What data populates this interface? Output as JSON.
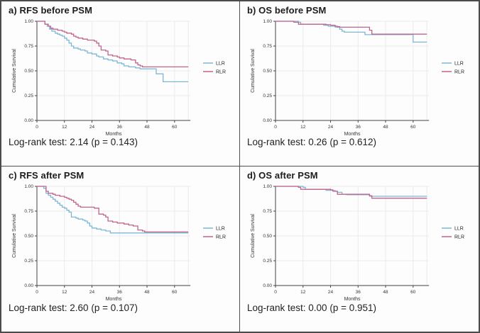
{
  "figure": {
    "background": "#fdfdfd",
    "outer_border_color": "#4b4b4b",
    "divider_color": "#4f4f4f"
  },
  "shared": {
    "colors": {
      "LLR": "#7eb6d6",
      "RLR": "#c2638b",
      "axis": "#444444",
      "grid": "#ebebeb",
      "tick_text": "#333333"
    },
    "axis": {
      "x_label": "Months",
      "y_label": "Cumulative Survival",
      "x_ticks": [
        0,
        12,
        24,
        36,
        48,
        60
      ],
      "y_ticks": [
        {
          "label": "1.00",
          "value": 1.0
        },
        {
          "label": "0.75",
          "value": 0.75
        },
        {
          "label": "0.50",
          "value": 0.5
        },
        {
          "label": "0.25",
          "value": 0.25
        },
        {
          "label": "0.00",
          "value": 0.0
        }
      ],
      "x_max": 66,
      "y_range": [
        0,
        1
      ]
    },
    "legend": [
      "LLR",
      "RLR"
    ]
  },
  "chart_data": [
    {
      "type": "line",
      "subtype": "step-km",
      "title": "a) RFS before PSM",
      "annotation": "Log-rank test: 2.14 (p = 0.143)",
      "xlabel": "Months",
      "ylabel": "Cumulative Survival",
      "xlim": [
        0,
        66
      ],
      "ylim": [
        0,
        1
      ],
      "legend_position": "right",
      "grid": true,
      "series": [
        {
          "name": "LLR",
          "points": [
            [
              0,
              1.0
            ],
            [
              3.5,
              0.97
            ],
            [
              4.5,
              0.95
            ],
            [
              5.5,
              0.92
            ],
            [
              6.5,
              0.9
            ],
            [
              8,
              0.88
            ],
            [
              9,
              0.87
            ],
            [
              10,
              0.86
            ],
            [
              11,
              0.85
            ],
            [
              12,
              0.83
            ],
            [
              13,
              0.81
            ],
            [
              14,
              0.78
            ],
            [
              15,
              0.75
            ],
            [
              16,
              0.73
            ],
            [
              18,
              0.72
            ],
            [
              19,
              0.71
            ],
            [
              21,
              0.7
            ],
            [
              22,
              0.68
            ],
            [
              24,
              0.67
            ],
            [
              26,
              0.65
            ],
            [
              27,
              0.64
            ],
            [
              29,
              0.62
            ],
            [
              31,
              0.61
            ],
            [
              33,
              0.6
            ],
            [
              35,
              0.58
            ],
            [
              37,
              0.57
            ],
            [
              38,
              0.55
            ],
            [
              40,
              0.54
            ],
            [
              43,
              0.53
            ],
            [
              45,
              0.52
            ],
            [
              52,
              0.47
            ],
            [
              55,
              0.39
            ],
            [
              66,
              0.39
            ]
          ]
        },
        {
          "name": "RLR",
          "points": [
            [
              0,
              1.0
            ],
            [
              3.5,
              0.97
            ],
            [
              5,
              0.95
            ],
            [
              6,
              0.93
            ],
            [
              7,
              0.92
            ],
            [
              9,
              0.91
            ],
            [
              11,
              0.9
            ],
            [
              12,
              0.89
            ],
            [
              13,
              0.88
            ],
            [
              15,
              0.87
            ],
            [
              16,
              0.85
            ],
            [
              17,
              0.84
            ],
            [
              18,
              0.83
            ],
            [
              20,
              0.82
            ],
            [
              22,
              0.81
            ],
            [
              25,
              0.8
            ],
            [
              26,
              0.78
            ],
            [
              27,
              0.75
            ],
            [
              28,
              0.71
            ],
            [
              30,
              0.7
            ],
            [
              31,
              0.66
            ],
            [
              33,
              0.65
            ],
            [
              35,
              0.64
            ],
            [
              36,
              0.63
            ],
            [
              38,
              0.62
            ],
            [
              41,
              0.61
            ],
            [
              43,
              0.58
            ],
            [
              44,
              0.56
            ],
            [
              45,
              0.55
            ],
            [
              46,
              0.54
            ],
            [
              66,
              0.54
            ]
          ]
        }
      ]
    },
    {
      "type": "line",
      "subtype": "step-km",
      "title": "b) OS before PSM",
      "annotation": "Log-rank test: 0.26 (p = 0.612)",
      "xlabel": "Months",
      "ylabel": "Cumulative Survival",
      "xlim": [
        0,
        66
      ],
      "ylim": [
        0,
        1
      ],
      "legend_position": "right",
      "grid": true,
      "series": [
        {
          "name": "LLR",
          "points": [
            [
              0,
              1.0
            ],
            [
              10,
              0.99
            ],
            [
              11,
              0.97
            ],
            [
              21,
              0.96
            ],
            [
              23,
              0.95
            ],
            [
              26,
              0.94
            ],
            [
              28,
              0.92
            ],
            [
              29,
              0.9
            ],
            [
              30,
              0.89
            ],
            [
              38,
              0.89
            ],
            [
              39,
              0.865
            ],
            [
              59,
              0.865
            ],
            [
              60,
              0.79
            ],
            [
              66,
              0.79
            ]
          ]
        },
        {
          "name": "RLR",
          "points": [
            [
              0,
              1.0
            ],
            [
              8,
              0.99
            ],
            [
              10,
              0.97
            ],
            [
              22,
              0.965
            ],
            [
              24,
              0.96
            ],
            [
              26,
              0.95
            ],
            [
              27,
              0.945
            ],
            [
              28,
              0.94
            ],
            [
              40,
              0.94
            ],
            [
              41,
              0.91
            ],
            [
              42,
              0.87
            ],
            [
              66,
              0.87
            ]
          ]
        }
      ]
    },
    {
      "type": "line",
      "subtype": "step-km",
      "title": "c) RFS after PSM",
      "annotation": "Log-rank test: 2.60 (p = 0.107)",
      "xlabel": "Months",
      "ylabel": "Cumulative Survival",
      "xlim": [
        0,
        66
      ],
      "ylim": [
        0,
        1
      ],
      "legend_position": "right",
      "grid": true,
      "series": [
        {
          "name": "LLR",
          "points": [
            [
              0,
              1.0
            ],
            [
              3,
              0.98
            ],
            [
              4,
              0.93
            ],
            [
              5,
              0.91
            ],
            [
              6,
              0.89
            ],
            [
              7,
              0.87
            ],
            [
              8,
              0.85
            ],
            [
              9,
              0.83
            ],
            [
              10,
              0.81
            ],
            [
              11,
              0.79
            ],
            [
              12,
              0.78
            ],
            [
              13,
              0.76
            ],
            [
              14,
              0.74
            ],
            [
              15,
              0.69
            ],
            [
              17,
              0.68
            ],
            [
              18,
              0.67
            ],
            [
              20,
              0.66
            ],
            [
              21,
              0.65
            ],
            [
              22,
              0.63
            ],
            [
              23,
              0.6
            ],
            [
              24,
              0.58
            ],
            [
              26,
              0.57
            ],
            [
              28,
              0.56
            ],
            [
              30,
              0.55
            ],
            [
              32,
              0.53
            ],
            [
              66,
              0.53
            ]
          ]
        },
        {
          "name": "RLR",
          "points": [
            [
              0,
              1.0
            ],
            [
              4,
              0.95
            ],
            [
              5,
              0.93
            ],
            [
              7,
              0.92
            ],
            [
              8,
              0.91
            ],
            [
              10,
              0.9
            ],
            [
              12,
              0.89
            ],
            [
              13,
              0.88
            ],
            [
              14,
              0.87
            ],
            [
              15,
              0.86
            ],
            [
              16,
              0.84
            ],
            [
              17,
              0.82
            ],
            [
              18,
              0.8
            ],
            [
              19,
              0.79
            ],
            [
              25,
              0.78
            ],
            [
              27,
              0.72
            ],
            [
              29,
              0.71
            ],
            [
              30,
              0.69
            ],
            [
              31,
              0.65
            ],
            [
              33,
              0.64
            ],
            [
              35,
              0.63
            ],
            [
              38,
              0.62
            ],
            [
              40,
              0.61
            ],
            [
              42,
              0.6
            ],
            [
              44,
              0.56
            ],
            [
              46,
              0.55
            ],
            [
              47,
              0.54
            ],
            [
              66,
              0.54
            ]
          ]
        }
      ]
    },
    {
      "type": "line",
      "subtype": "step-km",
      "title": "d) OS after PSM",
      "annotation": "Log-rank test: 0.00 (p = 0.951)",
      "xlabel": "Months",
      "ylabel": "Cumulative Survival",
      "xlim": [
        0,
        66
      ],
      "ylim": [
        0,
        1
      ],
      "legend_position": "right",
      "grid": true,
      "series": [
        {
          "name": "LLR",
          "points": [
            [
              0,
              1.0
            ],
            [
              12,
              0.99
            ],
            [
              13,
              0.97
            ],
            [
              22,
              0.96
            ],
            [
              25,
              0.95
            ],
            [
              27,
              0.94
            ],
            [
              29,
              0.92
            ],
            [
              31,
              0.915
            ],
            [
              40,
              0.915
            ],
            [
              41,
              0.9
            ],
            [
              66,
              0.9
            ]
          ]
        },
        {
          "name": "RLR",
          "points": [
            [
              0,
              1.0
            ],
            [
              10,
              0.99
            ],
            [
              11,
              0.97
            ],
            [
              24,
              0.965
            ],
            [
              25,
              0.955
            ],
            [
              26,
              0.95
            ],
            [
              27,
              0.92
            ],
            [
              40,
              0.92
            ],
            [
              41,
              0.905
            ],
            [
              42,
              0.88
            ],
            [
              66,
              0.88
            ]
          ]
        }
      ]
    }
  ]
}
